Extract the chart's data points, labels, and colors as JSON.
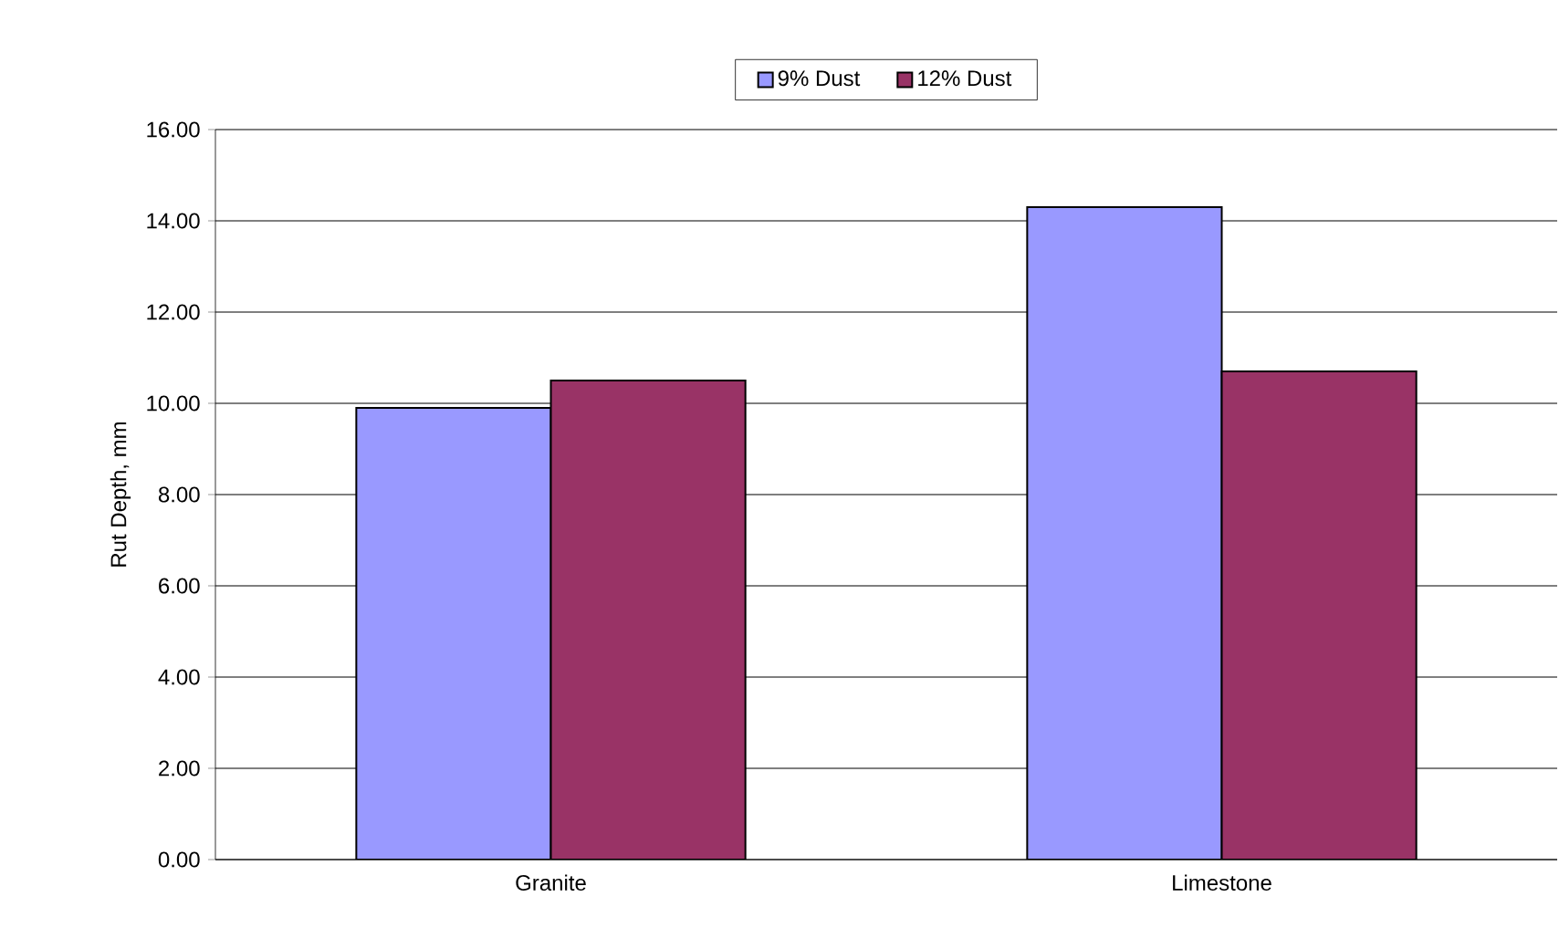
{
  "chart_data": {
    "type": "bar",
    "ylabel": "Rut Depth, mm",
    "categories": [
      "Granite",
      "Limestone"
    ],
    "series": [
      {
        "name": "9% Dust",
        "color": "#9999ff",
        "values": [
          9.9,
          14.3
        ]
      },
      {
        "name": "12% Dust",
        "color": "#993366",
        "values": [
          10.5,
          10.7
        ]
      }
    ],
    "ylim": [
      0,
      16
    ],
    "yticks": [
      {
        "value": 0,
        "label": "0.00"
      },
      {
        "value": 2,
        "label": "2.00"
      },
      {
        "value": 4,
        "label": "4.00"
      },
      {
        "value": 6,
        "label": "6.00"
      },
      {
        "value": 8,
        "label": "8.00"
      },
      {
        "value": 10,
        "label": "10.00"
      },
      {
        "value": 12,
        "label": "12.00"
      },
      {
        "value": 14,
        "label": "14.00"
      },
      {
        "value": 16,
        "label": "16.00"
      }
    ],
    "grid": "y",
    "legend": "top"
  }
}
